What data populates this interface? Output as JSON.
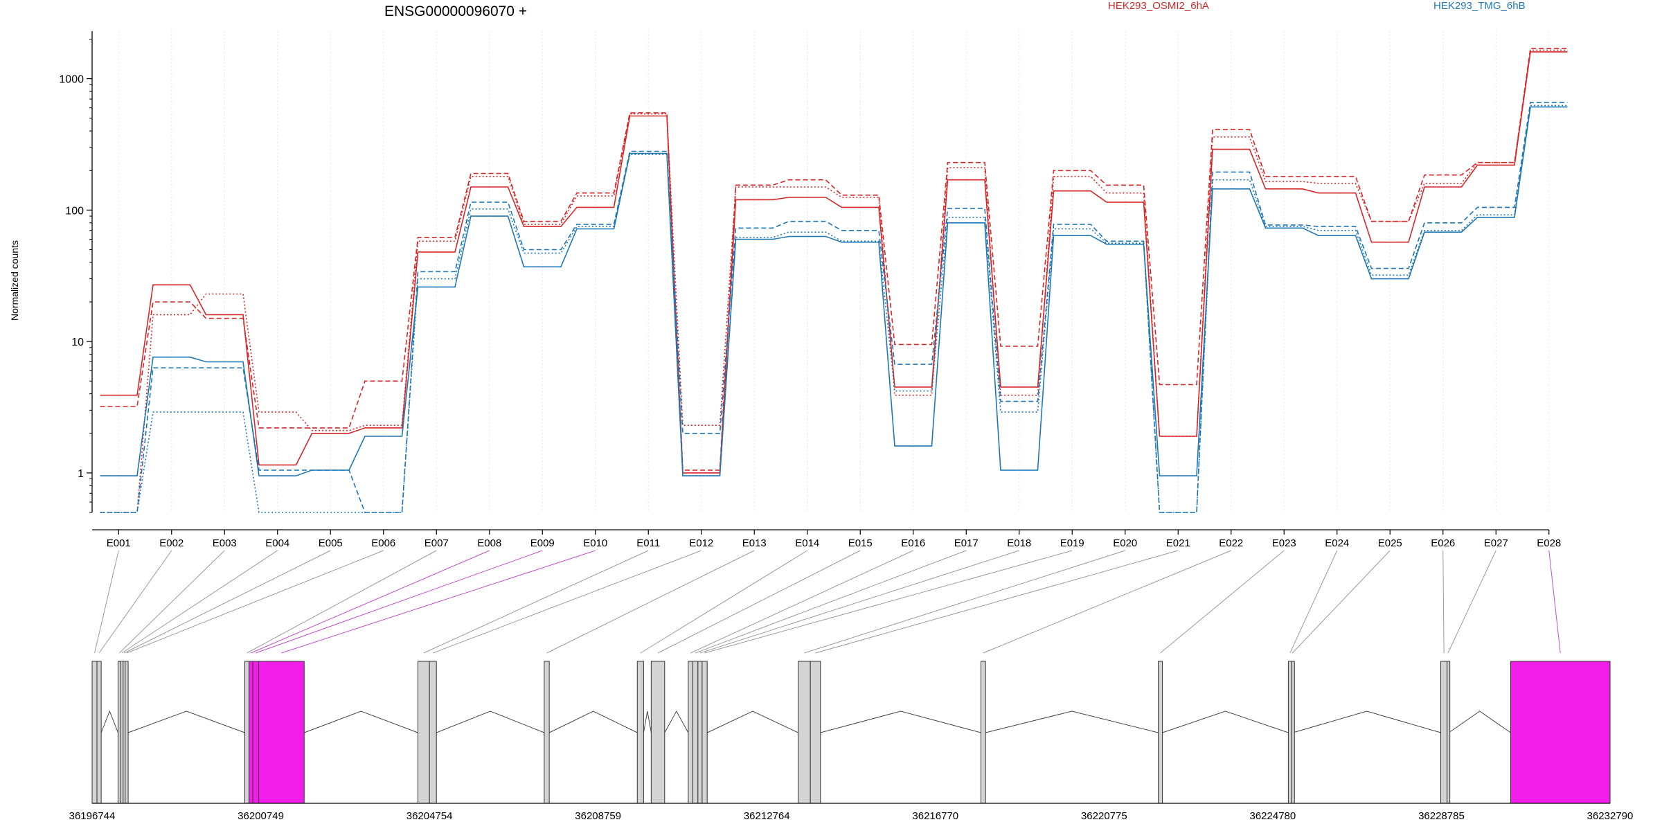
{
  "chart_data": {
    "type": "line",
    "title": "ENSG00000096070 +",
    "ylabel": "Normalized counts",
    "y_scale": "log",
    "ylim": [
      0.5,
      2300
    ],
    "yticks": [
      {
        "value": 1,
        "label": "1"
      },
      {
        "value": 10,
        "label": "10"
      },
      {
        "value": 100,
        "label": "100"
      },
      {
        "value": 1000,
        "label": "1000"
      }
    ],
    "categories": [
      "E001",
      "E002",
      "E003",
      "E004",
      "E005",
      "E006",
      "E007",
      "E008",
      "E009",
      "E010",
      "E011",
      "E012",
      "E013",
      "E014",
      "E015",
      "E016",
      "E017",
      "E018",
      "E019",
      "E020",
      "E021",
      "E022",
      "E023",
      "E024",
      "E025",
      "E026",
      "E027",
      "E028"
    ],
    "legend": [
      {
        "name": "HEK293_OSMI2_6hA",
        "color": "#d62728"
      },
      {
        "name": "HEK293_TMG_6hB",
        "color": "#1f77b4"
      }
    ],
    "series": [
      {
        "group": "HEK293_OSMI2_6hA",
        "color": "#d62728",
        "style": "solid",
        "values": [
          3.9,
          27,
          16,
          1.15,
          2.0,
          2.2,
          48,
          150,
          75,
          105,
          520,
          1.0,
          120,
          125,
          105,
          4.5,
          170,
          4.5,
          140,
          115,
          1.9,
          290,
          145,
          135,
          57,
          150,
          220,
          1600
        ]
      },
      {
        "group": "HEK293_OSMI2_6hA",
        "color": "#d62728",
        "style": "dashed",
        "values": [
          3.2,
          20,
          15,
          2.2,
          2.2,
          5.0,
          62,
          190,
          82,
          135,
          550,
          1.05,
          155,
          170,
          130,
          9.5,
          230,
          9.2,
          200,
          155,
          4.7,
          410,
          180,
          180,
          82,
          185,
          230,
          1700
        ]
      },
      {
        "group": "HEK293_OSMI2_6hA",
        "color": "#d62728",
        "style": "dotted",
        "values": [
          0.5,
          16,
          23,
          2.9,
          2.1,
          2.3,
          58,
          180,
          78,
          128,
          540,
          2.3,
          150,
          150,
          125,
          3.9,
          210,
          3.9,
          180,
          135,
          1.9,
          360,
          165,
          160,
          82,
          160,
          230,
          1650
        ]
      },
      {
        "group": "HEK293_TMG_6hB",
        "color": "#1f77b4",
        "style": "solid",
        "values": [
          0.95,
          7.6,
          7.0,
          0.95,
          1.05,
          1.9,
          26,
          90,
          37,
          72,
          270,
          0.95,
          60,
          63,
          57,
          1.6,
          80,
          1.05,
          64,
          55,
          0.95,
          145,
          73,
          64,
          30,
          68,
          88,
          610
        ]
      },
      {
        "group": "HEK293_TMG_6hB",
        "color": "#1f77b4",
        "style": "dashed",
        "values": [
          0.5,
          6.3,
          6.3,
          1.05,
          1.05,
          0.5,
          34,
          115,
          50,
          78,
          280,
          2.0,
          73,
          82,
          70,
          6.7,
          103,
          3.5,
          78,
          58,
          0.5,
          195,
          77,
          75,
          36,
          80,
          105,
          660
        ]
      },
      {
        "group": "HEK293_TMG_6hB",
        "color": "#1f77b4",
        "style": "dotted",
        "values": [
          0.5,
          2.9,
          2.9,
          0.5,
          0.5,
          0.5,
          30,
          102,
          47,
          75,
          265,
          0.95,
          62,
          68,
          58,
          4.2,
          88,
          2.9,
          72,
          56,
          0.5,
          170,
          75,
          70,
          32,
          70,
          92,
          625
        ]
      }
    ],
    "gene_model": {
      "x_range": [
        36196744,
        36232790
      ],
      "ticks": [
        "36196744",
        "36200749",
        "36204754",
        "36208759",
        "36212764",
        "36216770",
        "36220775",
        "36224780",
        "36228785",
        "36232790"
      ],
      "exons": [
        {
          "id": "E001",
          "start": 36196744,
          "end": 36196860,
          "highlight": false
        },
        {
          "id": "E002",
          "start": 36196860,
          "end": 36196960,
          "highlight": false
        },
        {
          "id": "E003",
          "start": 36197360,
          "end": 36197420,
          "highlight": false
        },
        {
          "id": "E004",
          "start": 36197420,
          "end": 36197480,
          "highlight": false
        },
        {
          "id": "E005",
          "start": 36197480,
          "end": 36197530,
          "highlight": false
        },
        {
          "id": "E006",
          "start": 36197530,
          "end": 36197600,
          "highlight": false
        },
        {
          "id": "E007",
          "start": 36200370,
          "end": 36200470,
          "highlight": false
        },
        {
          "id": "E008",
          "start": 36200470,
          "end": 36200560,
          "highlight": true
        },
        {
          "id": "E009",
          "start": 36200560,
          "end": 36200700,
          "highlight": true
        },
        {
          "id": "E010",
          "start": 36200700,
          "end": 36201780,
          "highlight": true
        },
        {
          "id": "E011",
          "start": 36204480,
          "end": 36204754,
          "highlight": false
        },
        {
          "id": "E012",
          "start": 36204754,
          "end": 36204920,
          "highlight": false
        },
        {
          "id": "E013",
          "start": 36207480,
          "end": 36207600,
          "highlight": false
        },
        {
          "id": "E014",
          "start": 36209690,
          "end": 36209840,
          "highlight": false
        },
        {
          "id": "E015",
          "start": 36210020,
          "end": 36210340,
          "highlight": false
        },
        {
          "id": "E016",
          "start": 36210900,
          "end": 36211010,
          "highlight": false
        },
        {
          "id": "E017",
          "start": 36211010,
          "end": 36211130,
          "highlight": false
        },
        {
          "id": "E018",
          "start": 36211130,
          "end": 36211230,
          "highlight": false
        },
        {
          "id": "E019",
          "start": 36211230,
          "end": 36211350,
          "highlight": false
        },
        {
          "id": "E020",
          "start": 36213510,
          "end": 36213800,
          "highlight": false
        },
        {
          "id": "E021",
          "start": 36213800,
          "end": 36214040,
          "highlight": false
        },
        {
          "id": "E022",
          "start": 36217850,
          "end": 36217960,
          "highlight": false
        },
        {
          "id": "E023",
          "start": 36222060,
          "end": 36222160,
          "highlight": false
        },
        {
          "id": "E024",
          "start": 36225150,
          "end": 36225230,
          "highlight": false
        },
        {
          "id": "E025",
          "start": 36225230,
          "end": 36225260,
          "highlight": false
        },
        {
          "id": "E026",
          "start": 36228770,
          "end": 36228920,
          "highlight": false
        },
        {
          "id": "E027",
          "start": 36228920,
          "end": 36228960,
          "highlight": false
        },
        {
          "id": "E028",
          "start": 36230430,
          "end": 36232790,
          "highlight": true
        }
      ]
    }
  }
}
